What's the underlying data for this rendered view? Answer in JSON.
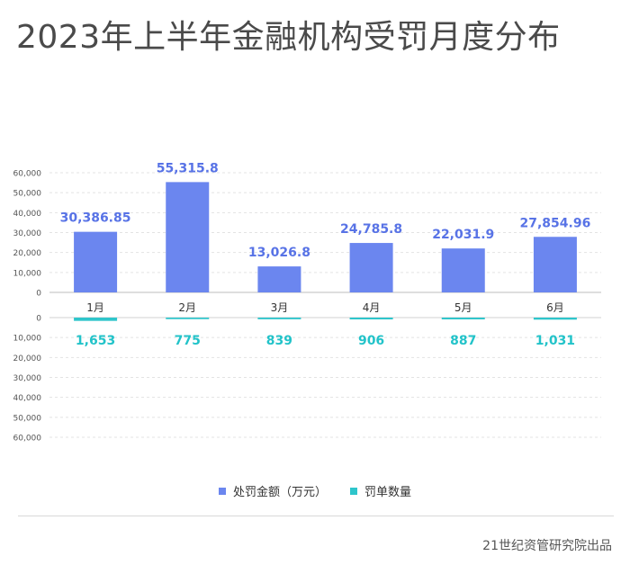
{
  "title": "2023年上半年金融机构受罚月度分布",
  "source": "21世纪资管研究院出品",
  "colors": {
    "penalty_amount": "#6b86ef",
    "penalty_count": "#2ec5cb",
    "amount_label": "#5873e6",
    "count_label": "#22c3c9",
    "grid": "#e3e3e3",
    "axis_text": "#555555"
  },
  "chart_data": {
    "type": "bar",
    "categories": [
      "1月",
      "2月",
      "3月",
      "4月",
      "5月",
      "6月"
    ],
    "series": [
      {
        "name": "处罚金额（万元）",
        "values": [
          30386.85,
          55315.8,
          13026.8,
          24785.8,
          22031.9,
          27854.96
        ],
        "labels": [
          "30,386.85",
          "55,315.8",
          "13,026.8",
          "24,785.8",
          "22,031.9",
          "27,854.96"
        ]
      },
      {
        "name": "罚单数量",
        "values": [
          1653,
          775,
          839,
          906,
          887,
          1031
        ],
        "labels": [
          "1,653",
          "775",
          "839",
          "906",
          "887",
          "1,031"
        ]
      }
    ],
    "top_axis": {
      "ylim": [
        0,
        60000
      ],
      "ticks": [
        "0",
        "10,000",
        "20,000",
        "30,000",
        "40,000",
        "50,000",
        "60,000"
      ]
    },
    "bottom_axis": {
      "ylim": [
        0,
        60000
      ],
      "ticks": [
        "0",
        "10,000",
        "20,000",
        "30,000",
        "40,000",
        "50,000",
        "60,000"
      ],
      "inverted": true
    },
    "grid": true,
    "legend_position": "bottom"
  }
}
